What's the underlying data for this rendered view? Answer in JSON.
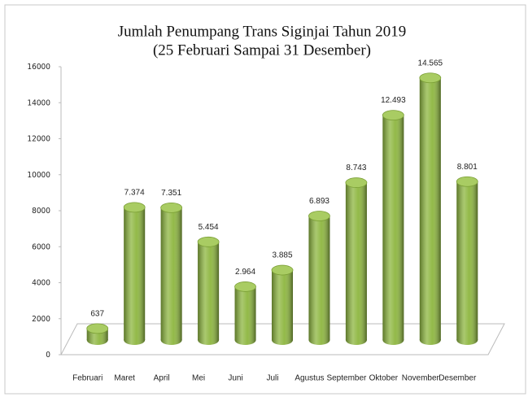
{
  "chart_data": {
    "type": "bar",
    "title": "Jumlah Penumpang Trans Siginjai Tahun 2019",
    "subtitle": "(25 Februari Sampai 31 Desember)",
    "categories": [
      "Februari",
      "Maret",
      "April",
      "Mei",
      "Juni",
      "Juli",
      "Agustus",
      "September",
      "Oktober",
      "November",
      "Desember"
    ],
    "values": [
      637,
      7374,
      7351,
      5454,
      2964,
      3885,
      6893,
      8743,
      12493,
      14565,
      8801
    ],
    "value_labels": [
      "637",
      "7.374",
      "7.351",
      "5.454",
      "2.964",
      "3.885",
      "6.893",
      "8.743",
      "12.493",
      "14.565",
      "8.801"
    ],
    "color": "#8db63f",
    "ylim": [
      0,
      16000
    ],
    "yticks": [
      0,
      2000,
      4000,
      6000,
      8000,
      10000,
      12000,
      14000,
      16000
    ]
  }
}
